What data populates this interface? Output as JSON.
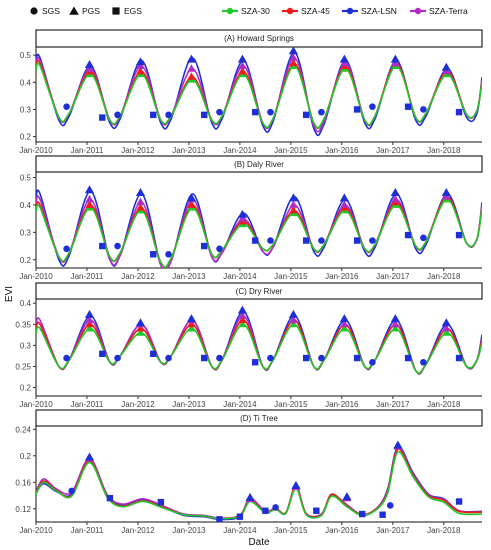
{
  "legend": {
    "shapes": [
      {
        "label": "SGS",
        "shape": "circle"
      },
      {
        "label": "PGS",
        "shape": "triangle"
      },
      {
        "label": "EGS",
        "shape": "square"
      }
    ],
    "lines": [
      {
        "label": "SZA-30",
        "color": "#22c72a"
      },
      {
        "label": "SZA-45",
        "color": "#ee1c1c"
      },
      {
        "label": "SZA-LSN",
        "color": "#1f2fd8"
      },
      {
        "label": "SZA-Terra",
        "color": "#b22cc4"
      }
    ]
  },
  "axes": {
    "xlabel": "Date",
    "ylabel": "EVI",
    "xticks": [
      "Jan-2010",
      "Jan-2011",
      "Jan-2012",
      "Jan-2013",
      "Jan-2014",
      "Jan-2015",
      "Jan-2016",
      "Jan-2017",
      "Jan-2018"
    ]
  },
  "chart_data": [
    {
      "type": "line",
      "title": "(A) Howard Springs",
      "x_range": [
        2010.0,
        2018.75
      ],
      "ylim": [
        0.18,
        0.53
      ],
      "yticks": [
        0.2,
        0.3,
        0.4,
        0.5
      ],
      "series": [
        {
          "name": "SZA-LSN",
          "peaks": [
            0.49,
            0.46,
            0.48,
            0.49,
            0.48,
            0.51,
            0.48,
            0.48,
            0.45
          ],
          "troughs": [
            0.26,
            0.25,
            0.25,
            0.25,
            0.24,
            0.23,
            0.25,
            0.26,
            0.27
          ]
        },
        {
          "name": "SZA-45",
          "peaks": [
            0.47,
            0.44,
            0.44,
            0.42,
            0.44,
            0.47,
            0.46,
            0.47,
            0.44
          ],
          "troughs": [
            0.27,
            0.26,
            0.26,
            0.26,
            0.25,
            0.25,
            0.26,
            0.27,
            0.28
          ]
        },
        {
          "name": "SZA-30",
          "peaks": [
            0.46,
            0.43,
            0.43,
            0.41,
            0.43,
            0.46,
            0.45,
            0.46,
            0.43
          ],
          "troughs": [
            0.27,
            0.26,
            0.26,
            0.26,
            0.25,
            0.25,
            0.26,
            0.27,
            0.28
          ]
        },
        {
          "name": "SZA-Terra",
          "peaks": [
            0.48,
            0.45,
            0.46,
            0.45,
            0.46,
            0.49,
            0.47,
            0.47,
            0.44
          ],
          "troughs": [
            0.27,
            0.26,
            0.26,
            0.26,
            0.25,
            0.24,
            0.26,
            0.27,
            0.28
          ]
        }
      ],
      "markers": {
        "SGS": [
          [
            2010.6,
            0.31
          ],
          [
            2011.6,
            0.28
          ],
          [
            2012.6,
            0.28
          ],
          [
            2013.6,
            0.29
          ],
          [
            2014.6,
            0.29
          ],
          [
            2015.6,
            0.29
          ],
          [
            2016.6,
            0.31
          ],
          [
            2017.6,
            0.3
          ]
        ],
        "PGS": [
          [
            2011.05,
            0.46
          ],
          [
            2012.05,
            0.47
          ],
          [
            2013.05,
            0.48
          ],
          [
            2014.05,
            0.48
          ],
          [
            2015.05,
            0.51
          ],
          [
            2016.05,
            0.48
          ],
          [
            2017.05,
            0.48
          ],
          [
            2018.05,
            0.45
          ]
        ],
        "EGS": [
          [
            2011.3,
            0.27
          ],
          [
            2012.3,
            0.28
          ],
          [
            2013.3,
            0.28
          ],
          [
            2014.3,
            0.29
          ],
          [
            2015.3,
            0.28
          ],
          [
            2016.3,
            0.3
          ],
          [
            2017.3,
            0.31
          ],
          [
            2018.3,
            0.29
          ]
        ]
      }
    },
    {
      "type": "line",
      "title": "(B) Daly River",
      "x_range": [
        2010.0,
        2018.75
      ],
      "ylim": [
        0.17,
        0.52
      ],
      "yticks": [
        0.2,
        0.3,
        0.4,
        0.5
      ],
      "series": [
        {
          "name": "SZA-LSN",
          "peaks": [
            0.44,
            0.45,
            0.44,
            0.44,
            0.37,
            0.43,
            0.42,
            0.44,
            0.44
          ],
          "troughs": [
            0.2,
            0.2,
            0.18,
            0.21,
            0.23,
            0.23,
            0.23,
            0.24,
            0.26
          ]
        },
        {
          "name": "SZA-45",
          "peaks": [
            0.4,
            0.4,
            0.39,
            0.4,
            0.34,
            0.38,
            0.39,
            0.41,
            0.43
          ],
          "troughs": [
            0.21,
            0.21,
            0.19,
            0.22,
            0.24,
            0.24,
            0.24,
            0.25,
            0.26
          ]
        },
        {
          "name": "SZA-30",
          "peaks": [
            0.39,
            0.39,
            0.38,
            0.39,
            0.33,
            0.37,
            0.38,
            0.4,
            0.42
          ],
          "troughs": [
            0.21,
            0.21,
            0.19,
            0.22,
            0.24,
            0.24,
            0.24,
            0.25,
            0.26
          ]
        },
        {
          "name": "SZA-Terra",
          "peaks": [
            0.42,
            0.42,
            0.41,
            0.42,
            0.35,
            0.4,
            0.4,
            0.42,
            0.43
          ],
          "troughs": [
            0.21,
            0.2,
            0.18,
            0.21,
            0.23,
            0.24,
            0.24,
            0.25,
            0.26
          ]
        }
      ],
      "markers": {
        "SGS": [
          [
            2010.6,
            0.24
          ],
          [
            2011.6,
            0.25
          ],
          [
            2012.6,
            0.22
          ],
          [
            2013.6,
            0.24
          ],
          [
            2014.6,
            0.27
          ],
          [
            2015.6,
            0.27
          ],
          [
            2016.6,
            0.27
          ],
          [
            2017.6,
            0.28
          ]
        ],
        "PGS": [
          [
            2011.05,
            0.45
          ],
          [
            2012.05,
            0.44
          ],
          [
            2013.05,
            0.42
          ],
          [
            2014.05,
            0.36
          ],
          [
            2015.05,
            0.42
          ],
          [
            2016.05,
            0.42
          ],
          [
            2017.05,
            0.44
          ],
          [
            2018.05,
            0.44
          ]
        ],
        "EGS": [
          [
            2011.3,
            0.25
          ],
          [
            2012.3,
            0.22
          ],
          [
            2013.3,
            0.25
          ],
          [
            2014.3,
            0.27
          ],
          [
            2015.3,
            0.27
          ],
          [
            2016.3,
            0.27
          ],
          [
            2017.3,
            0.29
          ],
          [
            2018.3,
            0.29
          ]
        ]
      }
    },
    {
      "type": "line",
      "title": "(C) Dry River",
      "x_range": [
        2010.0,
        2018.75
      ],
      "ylim": [
        0.18,
        0.41
      ],
      "yticks": [
        0.2,
        0.25,
        0.3,
        0.35,
        0.4
      ],
      "series": [
        {
          "name": "SZA-LSN",
          "peaks": [
            0.35,
            0.37,
            0.35,
            0.36,
            0.38,
            0.37,
            0.36,
            0.36,
            0.35
          ],
          "troughs": [
            0.25,
            0.26,
            0.26,
            0.25,
            0.25,
            0.25,
            0.25,
            0.24,
            0.25
          ]
        },
        {
          "name": "SZA-45",
          "peaks": [
            0.35,
            0.35,
            0.34,
            0.35,
            0.36,
            0.36,
            0.35,
            0.35,
            0.34
          ],
          "troughs": [
            0.25,
            0.26,
            0.26,
            0.25,
            0.25,
            0.25,
            0.25,
            0.24,
            0.25
          ]
        },
        {
          "name": "SZA-30",
          "peaks": [
            0.34,
            0.34,
            0.33,
            0.34,
            0.35,
            0.35,
            0.34,
            0.34,
            0.33
          ],
          "troughs": [
            0.25,
            0.26,
            0.26,
            0.25,
            0.25,
            0.25,
            0.25,
            0.24,
            0.25
          ]
        },
        {
          "name": "SZA-Terra",
          "peaks": [
            0.36,
            0.36,
            0.35,
            0.36,
            0.37,
            0.36,
            0.35,
            0.35,
            0.34
          ],
          "troughs": [
            0.25,
            0.26,
            0.26,
            0.25,
            0.25,
            0.25,
            0.25,
            0.24,
            0.25
          ]
        }
      ],
      "markers": {
        "SGS": [
          [
            2010.6,
            0.27
          ],
          [
            2011.6,
            0.27
          ],
          [
            2012.6,
            0.27
          ],
          [
            2013.6,
            0.27
          ],
          [
            2014.6,
            0.27
          ],
          [
            2015.6,
            0.27
          ],
          [
            2016.6,
            0.26
          ],
          [
            2017.6,
            0.26
          ]
        ],
        "PGS": [
          [
            2011.05,
            0.37
          ],
          [
            2012.05,
            0.35
          ],
          [
            2013.05,
            0.36
          ],
          [
            2014.05,
            0.38
          ],
          [
            2015.05,
            0.37
          ],
          [
            2016.05,
            0.36
          ],
          [
            2017.05,
            0.36
          ],
          [
            2018.05,
            0.35
          ]
        ],
        "EGS": [
          [
            2011.3,
            0.28
          ],
          [
            2012.3,
            0.28
          ],
          [
            2013.3,
            0.27
          ],
          [
            2014.3,
            0.26
          ],
          [
            2015.3,
            0.27
          ],
          [
            2016.3,
            0.27
          ],
          [
            2017.3,
            0.27
          ],
          [
            2018.3,
            0.27
          ]
        ]
      }
    },
    {
      "type": "line",
      "title": "(D) Ti Tree",
      "x_range": [
        2010.0,
        2018.75
      ],
      "ylim": [
        0.1,
        0.245
      ],
      "yticks": [
        0.12,
        0.16,
        0.2,
        0.24
      ],
      "series": [
        {
          "name": "SZA-LSN",
          "x": [
            2010.0,
            2010.15,
            2010.4,
            2010.7,
            2011.05,
            2011.4,
            2011.7,
            2012.1,
            2012.5,
            2012.9,
            2013.3,
            2013.6,
            2014.0,
            2014.2,
            2014.5,
            2014.7,
            2014.9,
            2015.1,
            2015.3,
            2015.6,
            2015.8,
            2016.1,
            2016.4,
            2016.7,
            2016.9,
            2017.1,
            2017.4,
            2017.7,
            2018.0,
            2018.3,
            2018.75
          ],
          "y": [
            0.143,
            0.158,
            0.146,
            0.142,
            0.195,
            0.14,
            0.125,
            0.134,
            0.122,
            0.11,
            0.108,
            0.104,
            0.108,
            0.135,
            0.114,
            0.12,
            0.113,
            0.152,
            0.112,
            0.11,
            0.14,
            0.125,
            0.11,
            0.122,
            0.15,
            0.214,
            0.174,
            0.142,
            0.135,
            0.117,
            0.116
          ]
        },
        {
          "name": "SZA-45",
          "x": [
            2010.0,
            2010.15,
            2010.4,
            2010.7,
            2011.05,
            2011.4,
            2011.7,
            2012.1,
            2012.5,
            2012.9,
            2013.3,
            2013.6,
            2014.0,
            2014.2,
            2014.5,
            2014.7,
            2014.9,
            2015.1,
            2015.3,
            2015.6,
            2015.8,
            2016.1,
            2016.4,
            2016.7,
            2016.9,
            2017.1,
            2017.4,
            2017.7,
            2018.0,
            2018.3,
            2018.75
          ],
          "y": [
            0.143,
            0.162,
            0.148,
            0.14,
            0.192,
            0.138,
            0.124,
            0.132,
            0.122,
            0.111,
            0.109,
            0.105,
            0.11,
            0.132,
            0.115,
            0.12,
            0.114,
            0.154,
            0.112,
            0.111,
            0.142,
            0.124,
            0.111,
            0.121,
            0.146,
            0.21,
            0.17,
            0.14,
            0.133,
            0.116,
            0.115
          ]
        },
        {
          "name": "SZA-30",
          "x": [
            2010.0,
            2010.15,
            2010.4,
            2010.7,
            2011.05,
            2011.4,
            2011.7,
            2012.1,
            2012.5,
            2012.9,
            2013.3,
            2013.6,
            2014.0,
            2014.2,
            2014.5,
            2014.7,
            2014.9,
            2015.1,
            2015.3,
            2015.6,
            2015.8,
            2016.1,
            2016.4,
            2016.7,
            2016.9,
            2017.1,
            2017.4,
            2017.7,
            2018.0,
            2018.3,
            2018.75
          ],
          "y": [
            0.142,
            0.16,
            0.147,
            0.139,
            0.19,
            0.137,
            0.123,
            0.131,
            0.121,
            0.111,
            0.109,
            0.105,
            0.109,
            0.131,
            0.114,
            0.119,
            0.113,
            0.151,
            0.111,
            0.11,
            0.139,
            0.123,
            0.11,
            0.12,
            0.144,
            0.206,
            0.168,
            0.138,
            0.13,
            0.113,
            0.112
          ]
        },
        {
          "name": "SZA-Terra",
          "x": [
            2010.0,
            2010.15,
            2010.4,
            2010.7,
            2011.05,
            2011.4,
            2011.7,
            2012.1,
            2012.5,
            2012.9,
            2013.3,
            2013.6,
            2014.0,
            2014.2,
            2014.5,
            2014.7,
            2014.9,
            2015.1,
            2015.3,
            2015.6,
            2015.8,
            2016.1,
            2016.4,
            2016.7,
            2016.9,
            2017.1,
            2017.4,
            2017.7,
            2018.0,
            2018.3,
            2018.75
          ],
          "y": [
            0.146,
            0.165,
            0.15,
            0.145,
            0.196,
            0.141,
            0.127,
            0.135,
            0.124,
            0.112,
            0.11,
            0.106,
            0.11,
            0.136,
            0.116,
            0.121,
            0.114,
            0.155,
            0.113,
            0.112,
            0.141,
            0.126,
            0.111,
            0.122,
            0.148,
            0.212,
            0.172,
            0.141,
            0.134,
            0.117,
            0.115
          ]
        }
      ],
      "markers": {
        "SGS": [
          [
            2010.7,
            0.147
          ],
          [
            2014.7,
            0.122
          ],
          [
            2016.95,
            0.125
          ]
        ],
        "PGS": [
          [
            2011.05,
            0.196
          ],
          [
            2014.2,
            0.135
          ],
          [
            2015.1,
            0.153
          ],
          [
            2016.1,
            0.136
          ],
          [
            2017.1,
            0.214
          ]
        ],
        "EGS": [
          [
            2011.45,
            0.136
          ],
          [
            2012.45,
            0.13
          ],
          [
            2013.6,
            0.104
          ],
          [
            2014.0,
            0.108
          ],
          [
            2014.5,
            0.117
          ],
          [
            2015.5,
            0.117
          ],
          [
            2016.4,
            0.112
          ],
          [
            2016.8,
            0.111
          ],
          [
            2018.3,
            0.131
          ]
        ]
      }
    }
  ]
}
